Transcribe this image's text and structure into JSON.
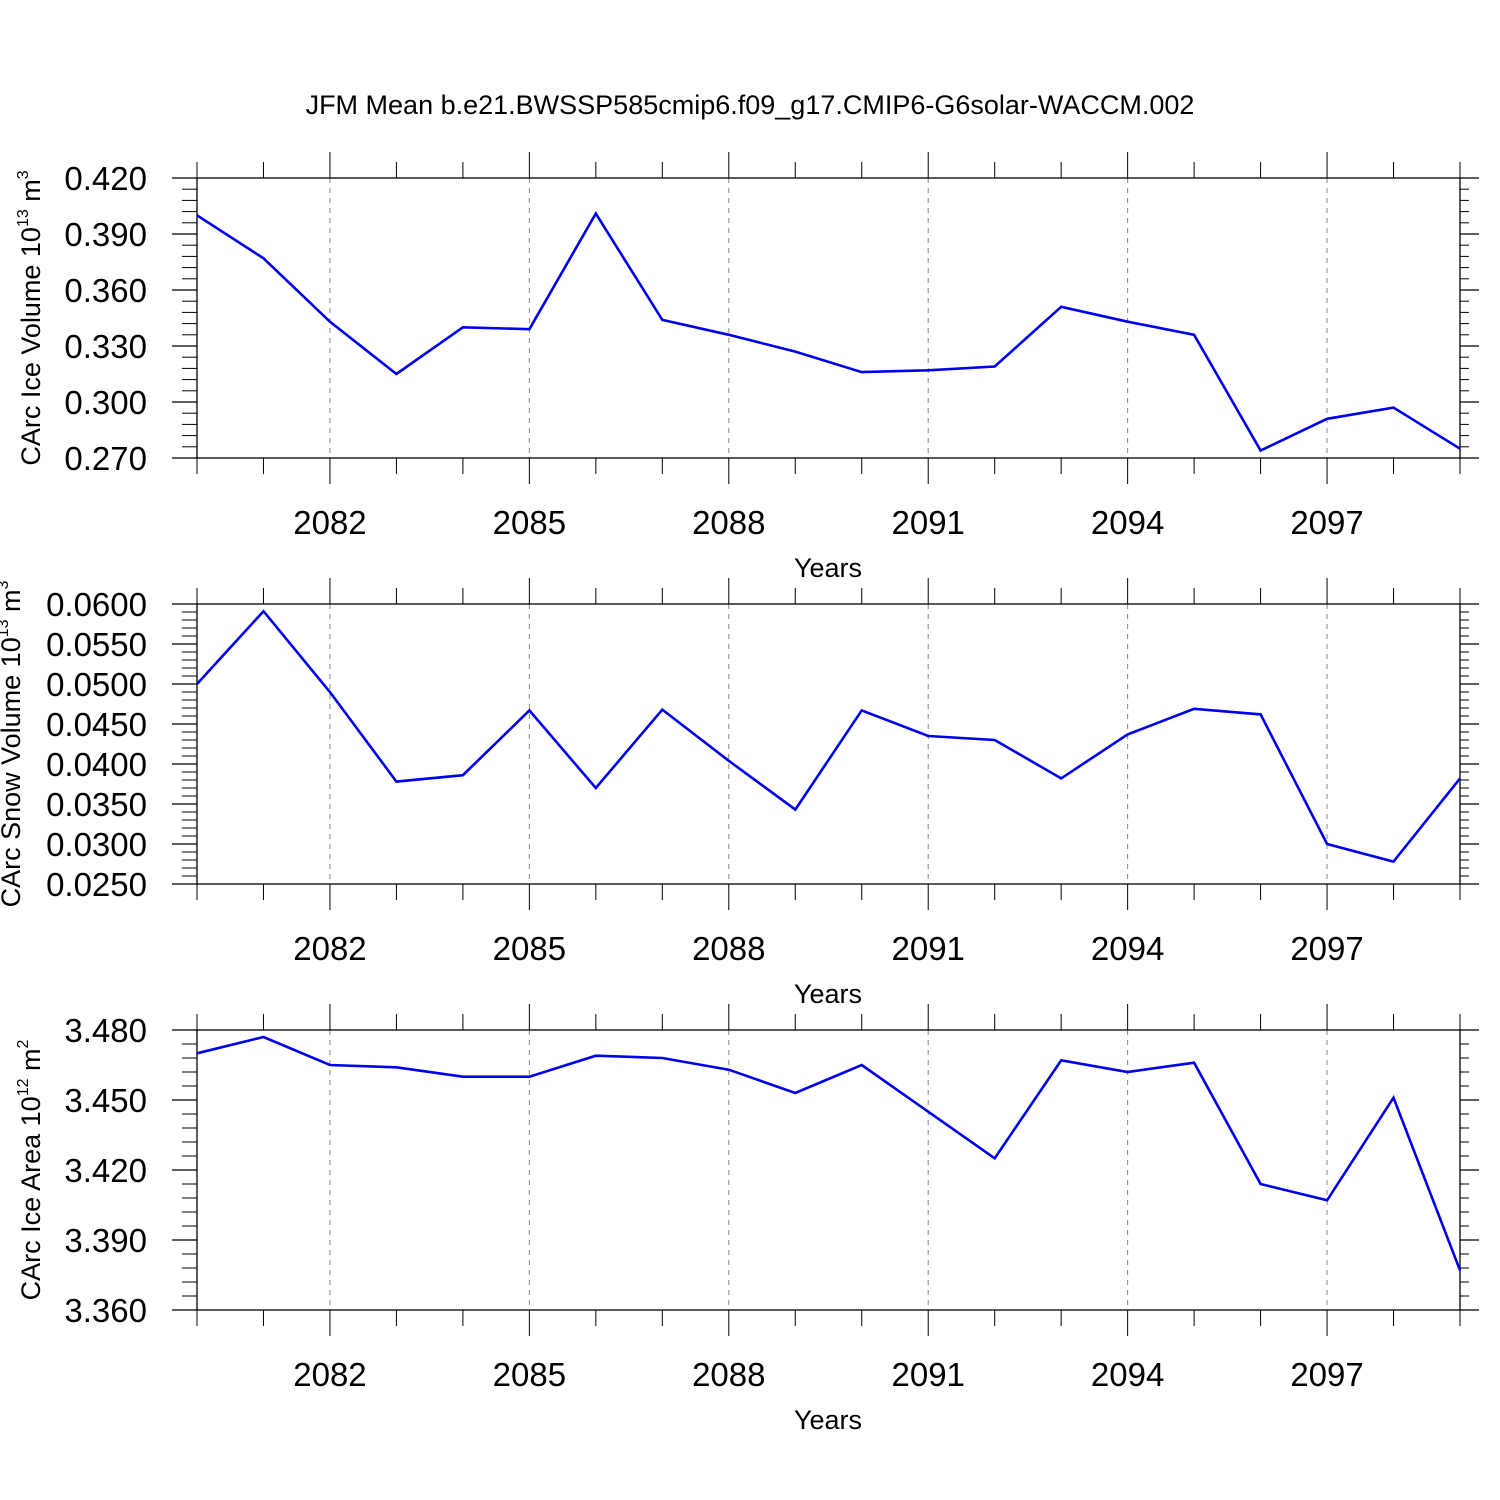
{
  "title": "JFM Mean b.e21.BWSSP585cmip6.f09_g17.CMIP6-G6solar-WACCM.002",
  "colors": {
    "line": "#0000ee",
    "axis": "#000000",
    "grid": "#888888"
  },
  "chart_data": [
    {
      "type": "line",
      "xlabel": "Years",
      "ylabel": {
        "text": "CArc Ice Volume 10",
        "sup": "13",
        "unit": " m",
        "unit_sup": "3"
      },
      "xlim": [
        2080,
        2099
      ],
      "x_major_ticks": [
        2082,
        2085,
        2088,
        2091,
        2094,
        2097
      ],
      "x_tick_labels": [
        "2082",
        "2085",
        "2088",
        "2091",
        "2094",
        "2097"
      ],
      "ylim": [
        0.27,
        0.42
      ],
      "y_tick_labels": [
        "0.270",
        "0.300",
        "0.330",
        "0.360",
        "0.390",
        "0.420"
      ],
      "y_minor_step": 0.006,
      "grid": "x-major-dashed",
      "x": [
        2080,
        2081,
        2082,
        2083,
        2084,
        2085,
        2086,
        2087,
        2088,
        2089,
        2090,
        2091,
        2092,
        2093,
        2094,
        2095,
        2096,
        2097,
        2098,
        2099
      ],
      "values": [
        0.4,
        0.377,
        0.343,
        0.315,
        0.34,
        0.339,
        0.401,
        0.344,
        0.336,
        0.327,
        0.316,
        0.317,
        0.319,
        0.351,
        0.343,
        0.336,
        0.274,
        0.291,
        0.297,
        0.275
      ]
    },
    {
      "type": "line",
      "xlabel": "Years",
      "ylabel": {
        "text": "CArc Snow Volume 10",
        "sup": "13",
        "unit": " m",
        "unit_sup": "3"
      },
      "xlim": [
        2080,
        2099
      ],
      "x_major_ticks": [
        2082,
        2085,
        2088,
        2091,
        2094,
        2097
      ],
      "x_tick_labels": [
        "2082",
        "2085",
        "2088",
        "2091",
        "2094",
        "2097"
      ],
      "ylim": [
        0.025,
        0.06
      ],
      "y_tick_labels": [
        "0.0250",
        "0.0300",
        "0.0350",
        "0.0400",
        "0.0450",
        "0.0500",
        "0.0550",
        "0.0600"
      ],
      "y_minor_step": 0.001,
      "grid": "x-major-dashed",
      "x": [
        2080,
        2081,
        2082,
        2083,
        2084,
        2085,
        2086,
        2087,
        2088,
        2089,
        2090,
        2091,
        2092,
        2093,
        2094,
        2095,
        2096,
        2097,
        2098,
        2099
      ],
      "values": [
        0.05,
        0.0591,
        0.049,
        0.0378,
        0.0386,
        0.0467,
        0.037,
        0.0468,
        0.0404,
        0.0343,
        0.0467,
        0.0435,
        0.043,
        0.0382,
        0.0437,
        0.0469,
        0.0462,
        0.03,
        0.0278,
        0.0382
      ]
    },
    {
      "type": "line",
      "xlabel": "Years",
      "ylabel": {
        "text": "CArc Ice Area 10",
        "sup": "12",
        "unit": " m",
        "unit_sup": "2"
      },
      "xlim": [
        2080,
        2099
      ],
      "x_major_ticks": [
        2082,
        2085,
        2088,
        2091,
        2094,
        2097
      ],
      "x_tick_labels": [
        "2082",
        "2085",
        "2088",
        "2091",
        "2094",
        "2097"
      ],
      "ylim": [
        3.36,
        3.48
      ],
      "y_tick_labels": [
        "3.360",
        "3.390",
        "3.420",
        "3.450",
        "3.480"
      ],
      "y_minor_step": 0.006,
      "grid": "x-major-dashed",
      "x": [
        2080,
        2081,
        2082,
        2083,
        2084,
        2085,
        2086,
        2087,
        2088,
        2089,
        2090,
        2091,
        2092,
        2093,
        2094,
        2095,
        2096,
        2097,
        2098,
        2099
      ],
      "values": [
        3.47,
        3.477,
        3.465,
        3.464,
        3.46,
        3.46,
        3.469,
        3.468,
        3.463,
        3.453,
        3.465,
        3.445,
        3.425,
        3.467,
        3.462,
        3.466,
        3.414,
        3.407,
        3.451,
        3.377
      ]
    }
  ]
}
